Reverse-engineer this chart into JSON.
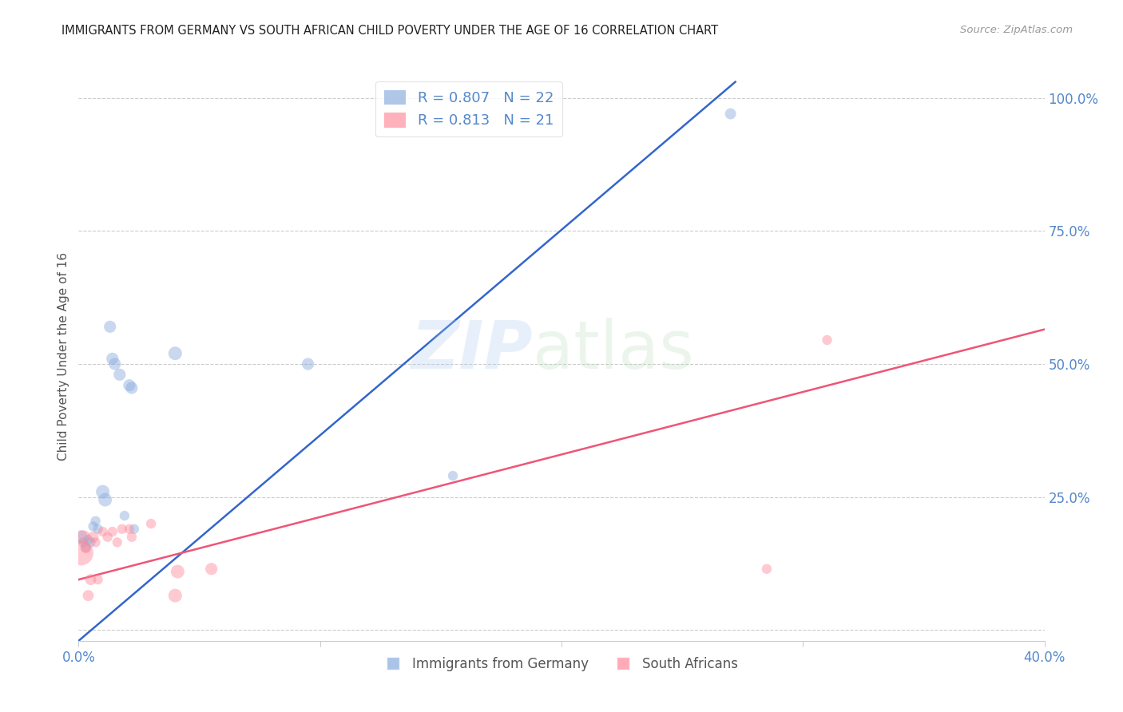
{
  "title": "IMMIGRANTS FROM GERMANY VS SOUTH AFRICAN CHILD POVERTY UNDER THE AGE OF 16 CORRELATION CHART",
  "source": "Source: ZipAtlas.com",
  "ylabel": "Child Poverty Under the Age of 16",
  "watermark_zip": "ZIP",
  "watermark_atlas": "atlas",
  "xlim": [
    0.0,
    0.4
  ],
  "ylim": [
    -0.02,
    1.05
  ],
  "blue_color": "#88AADD",
  "pink_color": "#FF8899",
  "blue_line_color": "#3366CC",
  "pink_line_color": "#EE5577",
  "legend_blue_r": "R = 0.807",
  "legend_blue_n": "N = 22",
  "legend_pink_r": "R = 0.813",
  "legend_pink_n": "N = 21",
  "legend_label_blue": "Immigrants from Germany",
  "legend_label_pink": "South Africans",
  "blue_scatter_x": [
    0.001,
    0.002,
    0.003,
    0.004,
    0.005,
    0.006,
    0.007,
    0.008,
    0.01,
    0.011,
    0.013,
    0.014,
    0.015,
    0.017,
    0.019,
    0.021,
    0.022,
    0.023,
    0.04,
    0.095,
    0.155,
    0.27
  ],
  "blue_scatter_y": [
    0.175,
    0.165,
    0.155,
    0.17,
    0.165,
    0.195,
    0.205,
    0.19,
    0.26,
    0.245,
    0.57,
    0.51,
    0.5,
    0.48,
    0.215,
    0.46,
    0.455,
    0.19,
    0.52,
    0.5,
    0.29,
    0.97
  ],
  "blue_scatter_sizes": [
    150,
    80,
    80,
    80,
    80,
    80,
    80,
    80,
    150,
    150,
    120,
    120,
    120,
    120,
    80,
    120,
    120,
    80,
    150,
    120,
    80,
    100
  ],
  "pink_scatter_x": [
    0.001,
    0.002,
    0.003,
    0.004,
    0.005,
    0.006,
    0.007,
    0.008,
    0.01,
    0.012,
    0.014,
    0.016,
    0.018,
    0.021,
    0.022,
    0.03,
    0.04,
    0.041,
    0.055,
    0.285,
    0.31
  ],
  "pink_scatter_y": [
    0.145,
    0.175,
    0.155,
    0.065,
    0.095,
    0.175,
    0.165,
    0.095,
    0.185,
    0.175,
    0.185,
    0.165,
    0.19,
    0.19,
    0.175,
    0.2,
    0.065,
    0.11,
    0.115,
    0.115,
    0.545
  ],
  "pink_scatter_sizes": [
    500,
    150,
    100,
    100,
    100,
    100,
    80,
    80,
    80,
    80,
    80,
    80,
    80,
    80,
    80,
    80,
    150,
    150,
    120,
    80,
    80
  ],
  "blue_trend_x": [
    0.0,
    0.272
  ],
  "blue_trend_y": [
    -0.02,
    1.03
  ],
  "pink_trend_x": [
    0.0,
    0.4
  ],
  "pink_trend_y": [
    0.095,
    0.565
  ],
  "grid_color": "#CCCCCC",
  "grid_linestyle": "--",
  "background_color": "#FFFFFF",
  "title_color": "#222222",
  "right_axis_color": "#5588CC",
  "ylabel_color": "#555555",
  "source_color": "#999999",
  "ytick_values": [
    0.0,
    0.25,
    0.5,
    0.75,
    1.0
  ],
  "ytick_labels": [
    "",
    "25.0%",
    "50.0%",
    "75.0%",
    "100.0%"
  ],
  "xtick_values": [
    0.0,
    0.1,
    0.2,
    0.3,
    0.4
  ],
  "xtick_labels": [
    "0.0%",
    "",
    "",
    "",
    "40.0%"
  ]
}
